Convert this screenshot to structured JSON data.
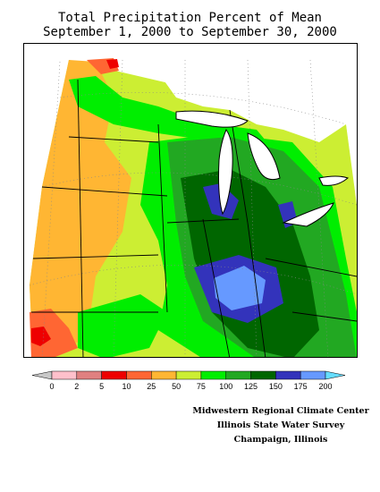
{
  "title": {
    "line1": "Total Precipitation Percent of Mean",
    "line2": "September 1, 2000 to September 30, 2000"
  },
  "legend": {
    "colors": [
      "#c8c8c8",
      "#ffc0cb",
      "#e08080",
      "#ee0000",
      "#ff6633",
      "#ffb633",
      "#ccee33",
      "#00ee00",
      "#22a822",
      "#006600",
      "#3333bb",
      "#6699ff",
      "#66ddff"
    ],
    "labels": [
      "0",
      "2",
      "5",
      "10",
      "25",
      "50",
      "75",
      "100",
      "125",
      "150",
      "175",
      "200"
    ]
  },
  "credits": {
    "line1": "Midwestern Regional Climate Center",
    "line2": "Illinois State Water Survey",
    "line3": "Champaign, Illinois"
  }
}
